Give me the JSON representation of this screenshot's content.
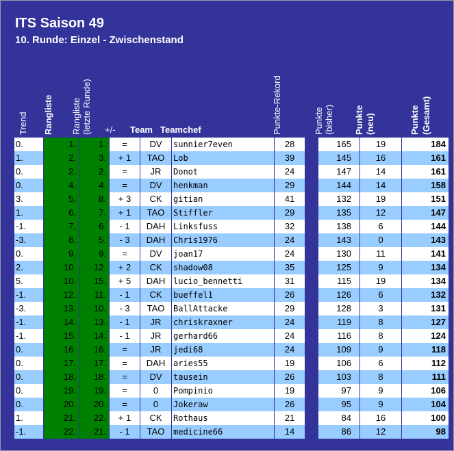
{
  "title": "ITS Saison 49",
  "subtitle": "10. Runde: Einzel - Zwischenstand",
  "headers": {
    "trend": "Trend",
    "rangliste": "Rangliste",
    "rangliste_letzte_1": "Rangliste",
    "rangliste_letzte_2": "(letzte Runde)",
    "diff": "+/-",
    "team": "Team",
    "teamchef": "Teamchef",
    "punkte_rekord": "Punkte-Rekord",
    "punkte_bisher_1": "Punkte",
    "punkte_bisher_2": "(bisher)",
    "punkte_neu_1": "Punkte",
    "punkte_neu_2": "(neu)",
    "punkte_gesamt_1": "Punkte",
    "punkte_gesamt_2": "(Gesamt)"
  },
  "colors": {
    "background": "#333399",
    "row_alt": "#99ccff",
    "rank_fill": "#008000"
  },
  "rows": [
    {
      "trend": "0.",
      "rang": "1.",
      "rang_alt": "1.",
      "diff": "=",
      "team": "DV",
      "teamchef": "sunnier7even",
      "rekord": "28",
      "bisher": "165",
      "neu": "19",
      "gesamt": "184"
    },
    {
      "trend": "1.",
      "rang": "2.",
      "rang_alt": "3.",
      "diff": "+ 1",
      "team": "TAO",
      "teamchef": "Lob",
      "rekord": "39",
      "bisher": "145",
      "neu": "16",
      "gesamt": "161"
    },
    {
      "trend": "0.",
      "rang": "2.",
      "rang_alt": "2.",
      "diff": "=",
      "team": "JR",
      "teamchef": "Donot",
      "rekord": "24",
      "bisher": "147",
      "neu": "14",
      "gesamt": "161"
    },
    {
      "trend": "0.",
      "rang": "4.",
      "rang_alt": "4.",
      "diff": "=",
      "team": "DV",
      "teamchef": "henkman",
      "rekord": "29",
      "bisher": "144",
      "neu": "14",
      "gesamt": "158"
    },
    {
      "trend": "3.",
      "rang": "5.",
      "rang_alt": "8.",
      "diff": "+ 3",
      "team": "CK",
      "teamchef": "gitian",
      "rekord": "41",
      "bisher": "132",
      "neu": "19",
      "gesamt": "151"
    },
    {
      "trend": "1.",
      "rang": "6.",
      "rang_alt": "7.",
      "diff": "+ 1",
      "team": "TAO",
      "teamchef": "Stiffler",
      "rekord": "29",
      "bisher": "135",
      "neu": "12",
      "gesamt": "147"
    },
    {
      "trend": "-1.",
      "rang": "7.",
      "rang_alt": "6.",
      "diff": "- 1",
      "team": "DAH",
      "teamchef": "Linksfuss",
      "rekord": "32",
      "bisher": "138",
      "neu": "6",
      "gesamt": "144"
    },
    {
      "trend": "-3.",
      "rang": "8.",
      "rang_alt": "5.",
      "diff": "- 3",
      "team": "DAH",
      "teamchef": "Chris1976",
      "rekord": "24",
      "bisher": "143",
      "neu": "0",
      "gesamt": "143"
    },
    {
      "trend": "0.",
      "rang": "9.",
      "rang_alt": "9.",
      "diff": "=",
      "team": "DV",
      "teamchef": "joan17",
      "rekord": "24",
      "bisher": "130",
      "neu": "11",
      "gesamt": "141"
    },
    {
      "trend": "2.",
      "rang": "10.",
      "rang_alt": "12.",
      "diff": "+ 2",
      "team": "CK",
      "teamchef": "shadow08",
      "rekord": "35",
      "bisher": "125",
      "neu": "9",
      "gesamt": "134"
    },
    {
      "trend": "5.",
      "rang": "10.",
      "rang_alt": "15.",
      "diff": "+ 5",
      "team": "DAH",
      "teamchef": "lucio_bennetti",
      "rekord": "31",
      "bisher": "115",
      "neu": "19",
      "gesamt": "134"
    },
    {
      "trend": "-1.",
      "rang": "12.",
      "rang_alt": "11.",
      "diff": "- 1",
      "team": "CK",
      "teamchef": "bueffel1",
      "rekord": "26",
      "bisher": "126",
      "neu": "6",
      "gesamt": "132"
    },
    {
      "trend": "-3.",
      "rang": "13.",
      "rang_alt": "10.",
      "diff": "- 3",
      "team": "TAO",
      "teamchef": "BallAttacke",
      "rekord": "29",
      "bisher": "128",
      "neu": "3",
      "gesamt": "131"
    },
    {
      "trend": "-1.",
      "rang": "14.",
      "rang_alt": "13.",
      "diff": "- 1",
      "team": "JR",
      "teamchef": "chriskraxner",
      "rekord": "24",
      "bisher": "119",
      "neu": "8",
      "gesamt": "127"
    },
    {
      "trend": "-1.",
      "rang": "15.",
      "rang_alt": "14.",
      "diff": "- 1",
      "team": "JR",
      "teamchef": "gerhard66",
      "rekord": "24",
      "bisher": "116",
      "neu": "8",
      "gesamt": "124"
    },
    {
      "trend": "0.",
      "rang": "16.",
      "rang_alt": "16.",
      "diff": "=",
      "team": "JR",
      "teamchef": "jedi68",
      "rekord": "24",
      "bisher": "109",
      "neu": "9",
      "gesamt": "118"
    },
    {
      "trend": "0.",
      "rang": "17.",
      "rang_alt": "17.",
      "diff": "=",
      "team": "DAH",
      "teamchef": "aries55",
      "rekord": "19",
      "bisher": "106",
      "neu": "6",
      "gesamt": "112"
    },
    {
      "trend": "0.",
      "rang": "18.",
      "rang_alt": "18.",
      "diff": "=",
      "team": "DV",
      "teamchef": "tausein",
      "rekord": "26",
      "bisher": "103",
      "neu": "8",
      "gesamt": "111"
    },
    {
      "trend": "0.",
      "rang": "19.",
      "rang_alt": "19.",
      "diff": "=",
      "team": "0",
      "teamchef": "Pompinio",
      "rekord": "19",
      "bisher": "97",
      "neu": "9",
      "gesamt": "106"
    },
    {
      "trend": "0.",
      "rang": "20.",
      "rang_alt": "20.",
      "diff": "=",
      "team": "0",
      "teamchef": "Jokeraw",
      "rekord": "26",
      "bisher": "95",
      "neu": "9",
      "gesamt": "104"
    },
    {
      "trend": "1.",
      "rang": "21.",
      "rang_alt": "22.",
      "diff": "+ 1",
      "team": "CK",
      "teamchef": "Rothaus",
      "rekord": "21",
      "bisher": "84",
      "neu": "16",
      "gesamt": "100"
    },
    {
      "trend": "-1.",
      "rang": "22.",
      "rang_alt": "21.",
      "diff": "- 1",
      "team": "TAO",
      "teamchef": "medicine66",
      "rekord": "14",
      "bisher": "86",
      "neu": "12",
      "gesamt": "98"
    }
  ]
}
